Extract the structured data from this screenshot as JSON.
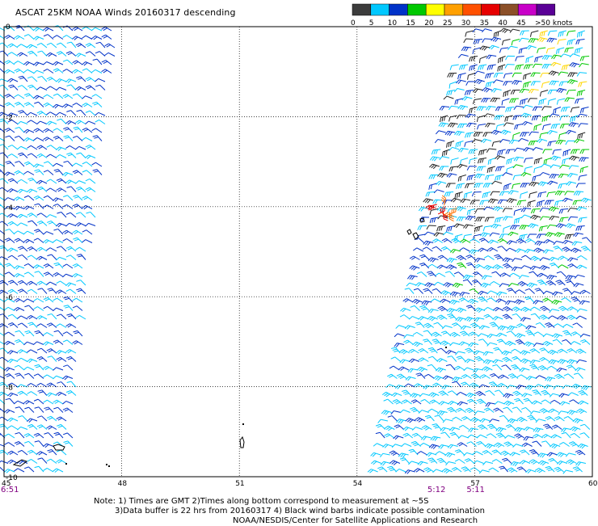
{
  "header": {
    "title": "ASCAT 25KM NOAA Winds 20160317 descending"
  },
  "legend": {
    "unit_label": ">50 knots",
    "ticks": [
      "0",
      "5",
      "10",
      "15",
      "20",
      "25",
      "30",
      "35",
      "40",
      "45"
    ],
    "bins": [
      {
        "range": "0-5",
        "color": "#3c3c3c"
      },
      {
        "range": "5-10",
        "color": "#00c8ff"
      },
      {
        "range": "10-15",
        "color": "#0032c8"
      },
      {
        "range": "15-20",
        "color": "#00c800"
      },
      {
        "range": "20-25",
        "color": "#ffff00"
      },
      {
        "range": "25-30",
        "color": "#ffa000"
      },
      {
        "range": "30-35",
        "color": "#ff5000"
      },
      {
        "range": "35-40",
        "color": "#e60000"
      },
      {
        "range": "40-45",
        "color": "#8c5028"
      },
      {
        "range": "45-50",
        "color": "#c800c8"
      },
      {
        "range": ">50",
        "color": "#5a0096"
      }
    ]
  },
  "map": {
    "lon_range": [
      45,
      60
    ],
    "lat_range": [
      0,
      -10
    ],
    "x_ticks": [
      "45",
      "48",
      "51",
      "54",
      "57",
      "60"
    ],
    "y_ticks": [
      "0",
      "-2",
      "-4",
      "-6",
      "-8",
      "-10"
    ],
    "grid": "dotted",
    "times": [
      {
        "label": "6:51",
        "lon": 45
      },
      {
        "label": "5:12",
        "lon": 56.0
      },
      {
        "label": "5:11",
        "lon": 57.0
      }
    ],
    "time_color": "#800080"
  },
  "notes": {
    "line1": "Note: 1) Times are GMT 2)Times along bottom correspond to measurement at ~5S",
    "line2": "3)Data buffer is 22 hrs from 20160317 4) Black wind barbs indicate possible contamination",
    "line3": "NOAA/NESDIS/Center for Satellite Applications and Research"
  }
}
